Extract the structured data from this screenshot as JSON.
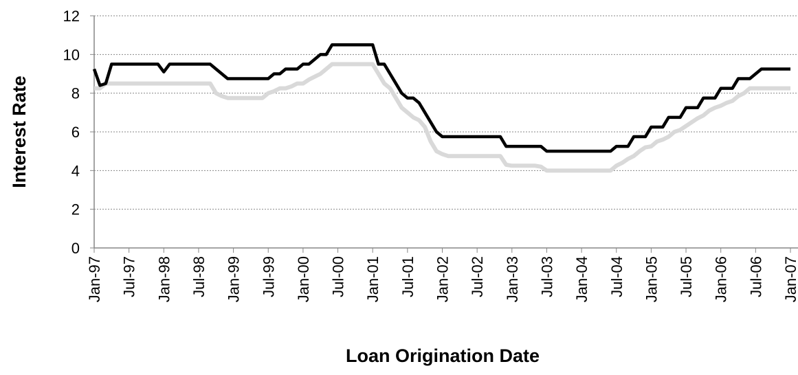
{
  "chart_data": {
    "type": "line",
    "x_label": "Loan Origination Date",
    "y_label": "Interest Rate",
    "categories": [
      "Jan-97",
      null,
      null,
      null,
      null,
      null,
      "Jul-97",
      null,
      null,
      null,
      null,
      null,
      "Jan-98",
      null,
      null,
      null,
      null,
      null,
      "Jul-98",
      null,
      null,
      null,
      null,
      null,
      "Jan-99",
      null,
      null,
      null,
      null,
      null,
      "Jul-99",
      null,
      null,
      null,
      null,
      null,
      "Jan-00",
      null,
      null,
      null,
      null,
      null,
      "Jul-00",
      null,
      null,
      null,
      null,
      null,
      "Jan-01",
      null,
      null,
      null,
      null,
      null,
      "Jul-01",
      null,
      null,
      null,
      null,
      null,
      "Jan-02",
      null,
      null,
      null,
      null,
      null,
      "Jul-02",
      null,
      null,
      null,
      null,
      null,
      "Jan-03",
      null,
      null,
      null,
      null,
      null,
      "Jul-03",
      null,
      null,
      null,
      null,
      null,
      "Jan-04",
      null,
      null,
      null,
      null,
      null,
      "Jul-04",
      null,
      null,
      null,
      null,
      null,
      "Jan-05",
      null,
      null,
      null,
      null,
      null,
      "Jul-05",
      null,
      null,
      null,
      null,
      null,
      "Jan-06",
      null,
      null,
      null,
      null,
      null,
      "Jul-06",
      null,
      null,
      null,
      null,
      null,
      "Jan-07"
    ],
    "series": [
      {
        "color": "#d9d9d9",
        "values": [
          8.25,
          8.25,
          8.5,
          8.5,
          8.5,
          8.5,
          8.5,
          8.5,
          8.5,
          8.5,
          8.5,
          8.5,
          8.5,
          8.5,
          8.5,
          8.5,
          8.5,
          8.5,
          8.5,
          8.5,
          8.5,
          8.0,
          7.85,
          7.75,
          7.75,
          7.75,
          7.75,
          7.75,
          7.75,
          7.75,
          8.0,
          8.1,
          8.25,
          8.25,
          8.35,
          8.5,
          8.5,
          8.7,
          8.85,
          9.0,
          9.25,
          9.5,
          9.5,
          9.5,
          9.5,
          9.5,
          9.5,
          9.5,
          9.5,
          9.0,
          8.5,
          8.25,
          7.75,
          7.25,
          7.0,
          6.75,
          6.6,
          6.25,
          5.5,
          5.0,
          4.85,
          4.75,
          4.75,
          4.75,
          4.75,
          4.75,
          4.75,
          4.75,
          4.75,
          4.75,
          4.75,
          4.3,
          4.25,
          4.25,
          4.25,
          4.25,
          4.25,
          4.2,
          4.0,
          4.0,
          4.0,
          4.0,
          4.0,
          4.0,
          4.0,
          4.0,
          4.0,
          4.0,
          4.0,
          4.0,
          4.25,
          4.4,
          4.6,
          4.75,
          5.0,
          5.2,
          5.25,
          5.5,
          5.6,
          5.75,
          6.0,
          6.1,
          6.3,
          6.5,
          6.7,
          6.85,
          7.1,
          7.25,
          7.35,
          7.5,
          7.6,
          7.85,
          8.0,
          8.25,
          8.25,
          8.25,
          8.25,
          8.25,
          8.25,
          8.25,
          8.25
        ]
      },
      {
        "color": "#000000",
        "values": [
          9.25,
          8.4,
          8.5,
          9.5,
          9.5,
          9.5,
          9.5,
          9.5,
          9.5,
          9.5,
          9.5,
          9.5,
          9.1,
          9.5,
          9.5,
          9.5,
          9.5,
          9.5,
          9.5,
          9.5,
          9.5,
          9.25,
          9.0,
          8.75,
          8.75,
          8.75,
          8.75,
          8.75,
          8.75,
          8.75,
          8.75,
          9.0,
          9.0,
          9.25,
          9.25,
          9.25,
          9.5,
          9.5,
          9.75,
          10.0,
          10.0,
          10.5,
          10.5,
          10.5,
          10.5,
          10.5,
          10.5,
          10.5,
          10.5,
          9.5,
          9.5,
          9.0,
          8.5,
          8.0,
          7.75,
          7.75,
          7.5,
          7.0,
          6.5,
          6.0,
          5.75,
          5.75,
          5.75,
          5.75,
          5.75,
          5.75,
          5.75,
          5.75,
          5.75,
          5.75,
          5.75,
          5.25,
          5.25,
          5.25,
          5.25,
          5.25,
          5.25,
          5.25,
          5.0,
          5.0,
          5.0,
          5.0,
          5.0,
          5.0,
          5.0,
          5.0,
          5.0,
          5.0,
          5.0,
          5.0,
          5.25,
          5.25,
          5.25,
          5.75,
          5.75,
          5.75,
          6.25,
          6.25,
          6.25,
          6.75,
          6.75,
          6.75,
          7.25,
          7.25,
          7.25,
          7.75,
          7.75,
          7.75,
          8.25,
          8.25,
          8.25,
          8.75,
          8.75,
          8.75,
          9.0,
          9.25,
          9.25,
          9.25,
          9.25,
          9.25,
          9.25
        ]
      }
    ],
    "ylim": [
      0,
      12
    ],
    "yticks": [
      0,
      2,
      4,
      6,
      8,
      10,
      12
    ],
    "grid": true
  }
}
